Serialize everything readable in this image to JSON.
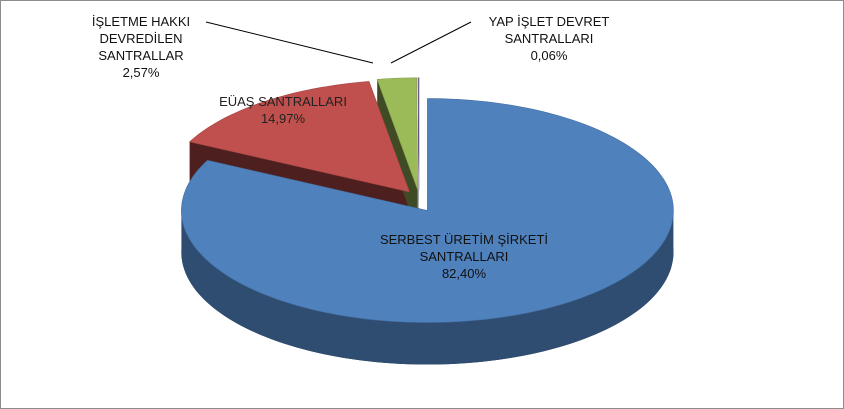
{
  "chart_data": {
    "type": "pie3d",
    "categories": [
      "SERBEST ÜRETİM ŞİRKETİ SANTRALLARI",
      "EÜAŞ SANTRALLARI",
      "İŞLETME HAKKI DEVREDİLEN SANTRALLAR",
      "YAP İŞLET DEVRET SANTRALLARI"
    ],
    "values": [
      82.4,
      14.97,
      2.57,
      0.06
    ],
    "value_labels": [
      "82,40%",
      "14,97%",
      "2,57%",
      "0,06%"
    ],
    "colors": [
      "#4f81bd",
      "#c0504d",
      "#9bbb59",
      "#8064a2"
    ]
  }
}
